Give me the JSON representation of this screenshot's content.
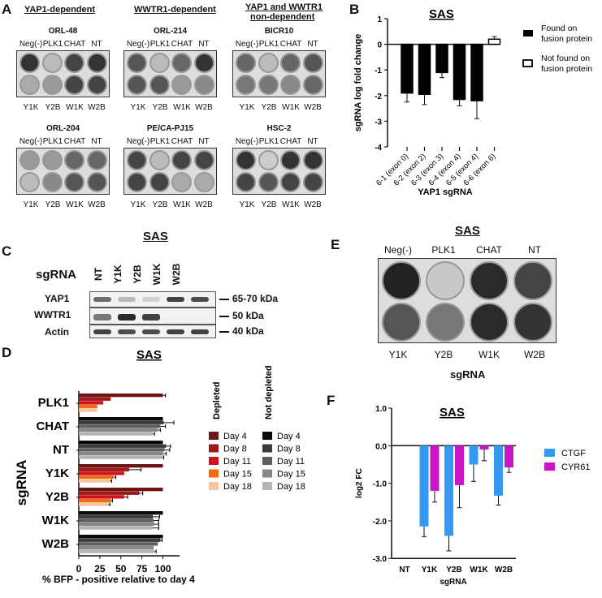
{
  "panelA": {
    "letter": "A",
    "groups": [
      "YAP1-dependent",
      "WWTR1-dependent",
      "YAP1 and WWTR1",
      "non-dependent"
    ],
    "top_labels": [
      "Neg(-)",
      "PLK1",
      "CHAT",
      "NT"
    ],
    "bottom_labels": [
      "Y1K",
      "Y2B",
      "W1K",
      "W2B"
    ],
    "cell_lines": [
      "ORL-48",
      "ORL-214",
      "BICR10",
      "ORL-204",
      "PE/CA-PJ15",
      "HSC-2"
    ]
  },
  "panelB": {
    "letter": "B"
  },
  "panelC": {
    "letter": "C",
    "title": "SAS",
    "row_header": "sgRNA",
    "lanes": [
      "NT",
      "Y1K",
      "Y2B",
      "W1K",
      "W2B"
    ],
    "proteins": [
      "YAP1",
      "WWTR1",
      "Actin"
    ],
    "sizes": [
      "65-70 kDa",
      "50 kDa",
      "40 kDa"
    ]
  },
  "panelD": {
    "letter": "D",
    "legend_group1": "Depleted",
    "legend_group2": "Not depleted"
  },
  "panelE": {
    "letter": "E",
    "title": "SAS",
    "top_labels": [
      "Neg(-)",
      "PLK1",
      "CHAT",
      "NT"
    ],
    "bottom_labels": [
      "Y1K",
      "Y2B",
      "W1K",
      "W2B"
    ],
    "xlabel": "sgRNA"
  },
  "panelF": {
    "letter": "F"
  },
  "chart_data": [
    {
      "id": "B",
      "type": "bar",
      "title": "SAS",
      "xlabel": "YAP1 sgRNA",
      "ylabel": "sgRNA log fold change",
      "ylim": [
        -4,
        1
      ],
      "yticks": [
        1,
        0,
        -1,
        -2,
        -3,
        -4
      ],
      "categories": [
        "6-1 (exon 0)",
        "6-2 (exon 2)",
        "6-3 (exon 3)",
        "6-4 (exon 4)",
        "6-5 (exon 4)",
        "6-6 (exon 6)"
      ],
      "values": [
        -1.9,
        -1.95,
        -1.1,
        -2.15,
        -2.2,
        0.2
      ],
      "errors": [
        0.35,
        0.4,
        0.2,
        0.25,
        0.7,
        0.1
      ],
      "legend": [
        "Found on fusion protein",
        "Not found on fusion protein"
      ],
      "legend_lines": [
        [
          "Found on",
          "fusion protein"
        ],
        [
          "Not found on",
          "fusion protein"
        ]
      ],
      "found_on_fusion": [
        true,
        true,
        true,
        true,
        true,
        false
      ]
    },
    {
      "id": "D",
      "type": "bar",
      "orientation": "horizontal",
      "title": "SAS",
      "xlabel": "% BFP - positive relative to day 4",
      "ylabel": "sgRNA",
      "xlim": [
        0,
        120
      ],
      "xticks": [
        0,
        25,
        50,
        75,
        100
      ],
      "categories": [
        "PLK1",
        "CHAT",
        "NT",
        "Y1K",
        "Y2B",
        "W1K",
        "W2B"
      ],
      "depleted": [
        true,
        false,
        false,
        true,
        true,
        false,
        false
      ],
      "series": [
        {
          "name": "Day 4",
          "values": [
            100,
            100,
            100,
            100,
            100,
            100,
            100
          ]
        },
        {
          "name": "Day 8",
          "values": [
            38,
            101,
            104,
            60,
            72,
            88,
            97
          ]
        },
        {
          "name": "Day 11",
          "values": [
            29,
            97,
            102,
            54,
            54,
            89,
            94
          ]
        },
        {
          "name": "Day 15",
          "values": [
            22,
            94,
            100,
            41,
            38,
            90,
            89
          ]
        },
        {
          "name": "Day 18",
          "values": [
            22,
            88,
            100,
            37,
            35,
            88,
            90
          ]
        }
      ],
      "errors_day": [
        [
          3,
          0,
          0,
          0,
          0,
          0,
          0
        ],
        [
          0,
          12,
          5,
          14,
          4,
          8,
          2
        ],
        [
          0,
          6,
          6,
          0,
          4,
          6,
          0
        ],
        [
          0,
          3,
          4,
          3,
          2,
          5,
          0
        ],
        [
          0,
          2,
          1,
          2,
          2,
          7,
          2
        ]
      ],
      "legend": {
        "Depleted": [
          "Day 4",
          "Day 8",
          "Day 11",
          "Day 15",
          "Day 18"
        ],
        "Not depleted": [
          "Day 4",
          "Day 8",
          "Day 11",
          "Day 15",
          "Day 18"
        ]
      },
      "colors_depleted": [
        "#6e1414",
        "#9c1a1a",
        "#d0121e",
        "#f46a10",
        "#f6c6a2"
      ],
      "colors_not_depleted": [
        "#0a0a0a",
        "#3a3a3a",
        "#5e5e5e",
        "#888888",
        "#b5b5b8"
      ]
    },
    {
      "id": "F",
      "type": "bar",
      "title": "SAS",
      "xlabel": "sgRNA",
      "ylabel": "log2 FC",
      "ylim": [
        -3,
        1
      ],
      "yticks": [
        "1.0",
        "0.0",
        "-1.0",
        "-2.0",
        "-3.0"
      ],
      "categories": [
        "NT",
        "Y1K",
        "Y2B",
        "W1K",
        "W2B"
      ],
      "series": [
        {
          "name": "CTGF",
          "color": "#3399f3",
          "values": [
            0.0,
            -2.15,
            -2.4,
            -0.5,
            -1.33
          ],
          "errors": [
            0.02,
            0.27,
            0.4,
            0.45,
            0.25
          ]
        },
        {
          "name": "CYR61",
          "color": "#c816c8",
          "values": [
            0.0,
            -1.2,
            -1.05,
            -0.1,
            -0.58
          ],
          "errors": [
            0.02,
            0.3,
            0.6,
            0.3,
            0.13
          ]
        }
      ]
    }
  ]
}
